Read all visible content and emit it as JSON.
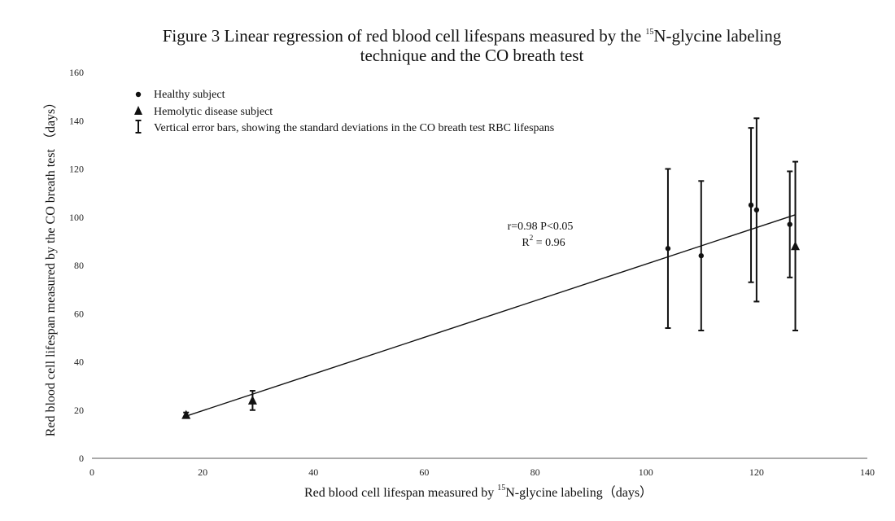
{
  "chart_data": {
    "type": "scatter",
    "title_main": "Figure 3 Linear regression of red blood cell lifespans measured by the",
    "title_sup": "15",
    "title_rest": "N-glycine labeling technique and the CO breath test",
    "xlabel_pre": "Red blood cell lifespan measured by",
    "xlabel_sup": "15",
    "xlabel_post": "N-glycine labeling（days）",
    "ylabel": "Red blood cell lifespan measured by the CO breath test （days）",
    "xlim": [
      0,
      140
    ],
    "ylim": [
      0,
      160
    ],
    "xticks": [
      0,
      20,
      40,
      60,
      80,
      100,
      120,
      140
    ],
    "yticks": [
      0,
      20,
      40,
      60,
      80,
      100,
      120,
      140,
      160
    ],
    "grid": false,
    "legend_position": "top-left",
    "legend": {
      "healthy": "Healthy subject",
      "hemolytic": "Hemolytic disease subject",
      "errorbar": "Vertical error bars, showing the standard deviations in the CO breath test RBC lifespans"
    },
    "series": [
      {
        "name": "Healthy subject",
        "marker": "circle",
        "points": [
          {
            "x": 104,
            "y": 87,
            "ylow": 54,
            "yhigh": 120
          },
          {
            "x": 110,
            "y": 84,
            "ylow": 53,
            "yhigh": 115
          },
          {
            "x": 119,
            "y": 105,
            "ylow": 73,
            "yhigh": 137
          },
          {
            "x": 120,
            "y": 103,
            "ylow": 65,
            "yhigh": 141
          },
          {
            "x": 126,
            "y": 97,
            "ylow": 75,
            "yhigh": 119
          }
        ]
      },
      {
        "name": "Hemolytic disease subject",
        "marker": "triangle",
        "points": [
          {
            "x": 17,
            "y": 18,
            "ylow": 17,
            "yhigh": 19
          },
          {
            "x": 29,
            "y": 24,
            "ylow": 20,
            "yhigh": 28
          },
          {
            "x": 127,
            "y": 88,
            "ylow": 53,
            "yhigh": 123
          }
        ]
      }
    ],
    "regression_line": {
      "x1": 17,
      "y1": 17.5,
      "x2": 127,
      "y2": 101
    },
    "annotations": {
      "r_text": "r=0.98 P<0.05",
      "r2_pre": "R",
      "r2_sup": "2",
      "r2_post": " = 0.96"
    },
    "colors": {
      "ink": "#111111"
    }
  }
}
